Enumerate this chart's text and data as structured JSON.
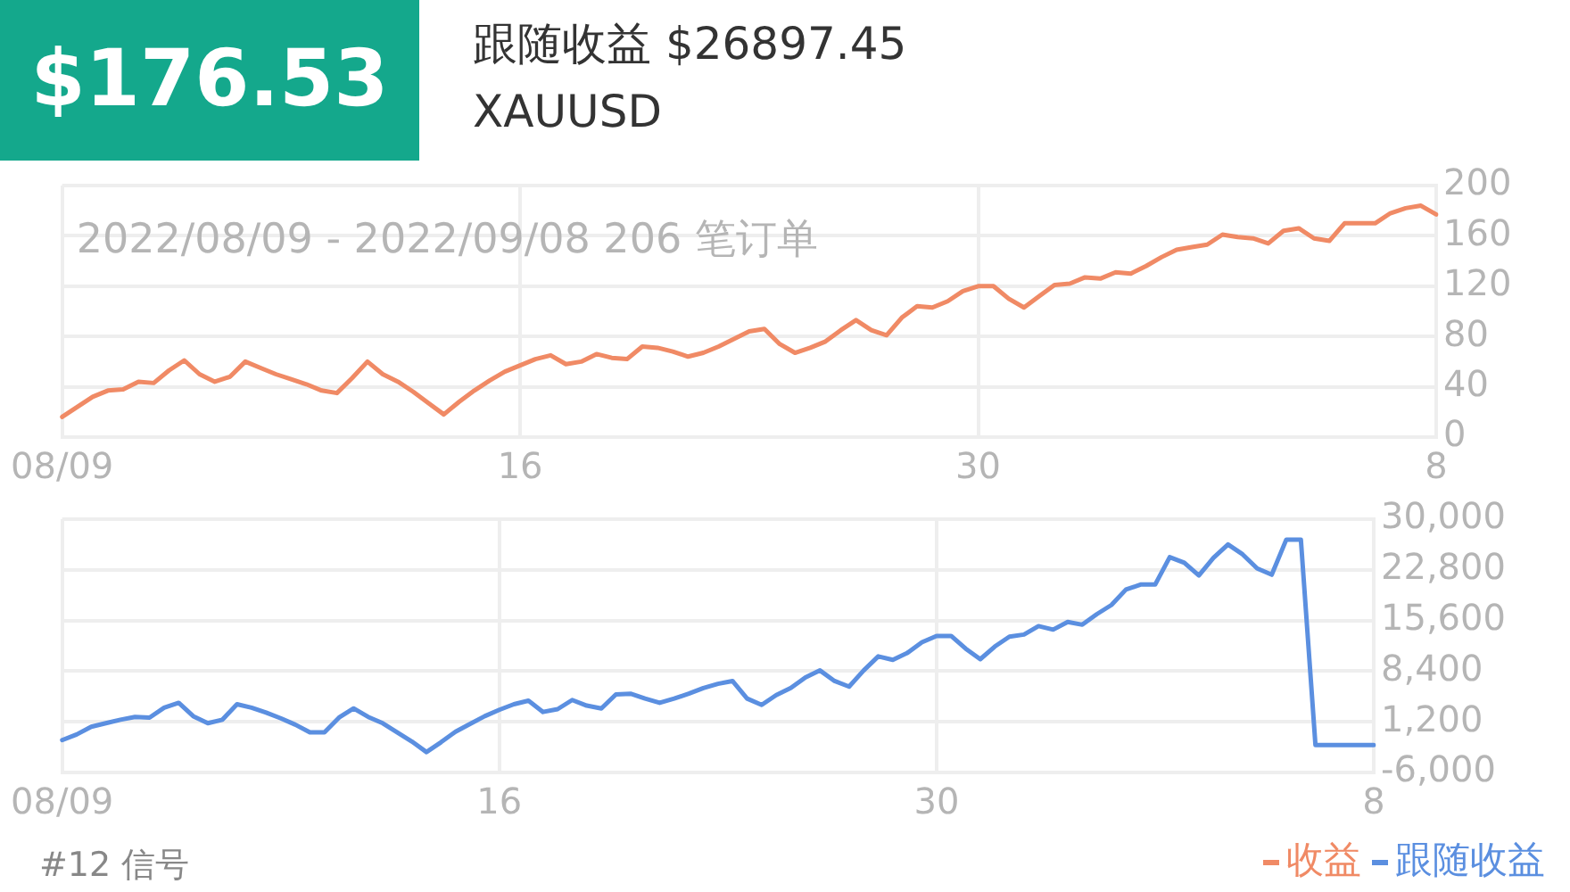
{
  "chart_data": [
    {
      "type": "line",
      "title": "$176.53",
      "subtitle": "跟随收益 $26897.45",
      "annotations": [
        "XAUUSD",
        "2022/08/09 - 2022/09/08 206 笔订单"
      ],
      "categories": [
        "08/09",
        null,
        null,
        null,
        null,
        null,
        null,
        null,
        null,
        null,
        null,
        null,
        null,
        null,
        null,
        null,
        null,
        null,
        null,
        null,
        null,
        null,
        null,
        null,
        null,
        null,
        null,
        null,
        null,
        null,
        "16",
        null,
        null,
        null,
        null,
        null,
        null,
        null,
        null,
        null,
        null,
        null,
        null,
        null,
        null,
        null,
        null,
        null,
        null,
        null,
        null,
        null,
        null,
        null,
        null,
        null,
        null,
        null,
        null,
        null,
        "30",
        null,
        null,
        null,
        null,
        null,
        null,
        null,
        null,
        null,
        null,
        null,
        null,
        null,
        null,
        null,
        null,
        null,
        null,
        null,
        null,
        null,
        null,
        null,
        null,
        null,
        null,
        null,
        null,
        null,
        "8"
      ],
      "series": [
        {
          "name": "收益",
          "color": "#f08a65",
          "values": [
            16,
            24,
            32,
            37,
            38,
            44,
            43,
            53,
            61,
            50,
            44,
            48,
            60,
            55,
            50,
            46,
            42,
            37,
            35,
            47,
            60,
            50,
            44,
            36,
            27,
            18,
            28,
            37,
            45,
            52,
            57,
            62,
            65,
            58,
            60,
            66,
            63,
            62,
            72,
            71,
            68,
            64,
            67,
            72,
            78,
            84,
            86,
            74,
            67,
            71,
            76,
            85,
            93,
            85,
            81,
            95,
            104,
            103,
            108,
            116,
            120,
            120,
            110,
            103,
            112,
            121,
            122,
            127,
            126,
            131,
            130,
            136,
            143,
            149,
            151,
            153,
            161,
            159,
            158,
            154,
            164,
            166,
            158,
            156,
            170,
            170,
            170,
            178,
            182,
            184,
            177
          ]
        }
      ],
      "ylim": [
        0,
        200
      ],
      "yticks": [
        0,
        40,
        80,
        120,
        160,
        200
      ],
      "grid": true,
      "marker": "none",
      "line_style": "solid"
    },
    {
      "type": "line",
      "annotations": [
        "#12 信号"
      ],
      "categories": [
        "08/09",
        null,
        null,
        null,
        null,
        null,
        null,
        null,
        null,
        null,
        null,
        null,
        null,
        null,
        null,
        null,
        null,
        null,
        null,
        null,
        null,
        null,
        null,
        null,
        null,
        null,
        null,
        null,
        null,
        null,
        "16",
        null,
        null,
        null,
        null,
        null,
        null,
        null,
        null,
        null,
        null,
        null,
        null,
        null,
        null,
        null,
        null,
        null,
        null,
        null,
        null,
        null,
        null,
        null,
        null,
        null,
        null,
        null,
        null,
        null,
        "30",
        null,
        null,
        null,
        null,
        null,
        null,
        null,
        null,
        null,
        null,
        null,
        null,
        null,
        null,
        null,
        null,
        null,
        null,
        null,
        null,
        null,
        null,
        null,
        null,
        null,
        null,
        null,
        null,
        null,
        "8"
      ],
      "series": [
        {
          "name": "跟随收益",
          "color": "#5b8fe0",
          "values": [
            -1400,
            -600,
            500,
            1000,
            1500,
            1900,
            1800,
            3200,
            3900,
            2000,
            1000,
            1500,
            3700,
            3200,
            2500,
            1700,
            800,
            -300,
            -300,
            1800,
            3100,
            1900,
            1000,
            -300,
            -1600,
            -3100,
            -1700,
            -200,
            900,
            2000,
            2900,
            3700,
            4200,
            2600,
            3000,
            4300,
            3500,
            3100,
            5100,
            5200,
            4500,
            3900,
            4500,
            5200,
            6000,
            6600,
            7000,
            4500,
            3600,
            5000,
            6000,
            7500,
            8500,
            7000,
            6200,
            8500,
            10500,
            10000,
            11000,
            12500,
            13400,
            13400,
            11600,
            10100,
            11900,
            13300,
            13600,
            14800,
            14300,
            15400,
            15000,
            16500,
            17800,
            20000,
            20700,
            20700,
            24600,
            23800,
            22000,
            24500,
            26400,
            25000,
            23000,
            22100,
            27100,
            27100,
            -2100,
            -2100,
            -2100,
            -2100,
            -2100
          ]
        }
      ],
      "ylim": [
        -6000,
        30000
      ],
      "yticks": [
        {
          "value": -6000,
          "label": "-6,000"
        },
        {
          "value": 1200,
          "label": "1,200"
        },
        {
          "value": 8400,
          "label": "8,400"
        },
        {
          "value": 15600,
          "label": "15,600"
        },
        {
          "value": 22800,
          "label": "22,800"
        },
        {
          "value": 30000,
          "label": "30,000"
        }
      ],
      "grid": true,
      "legend": "bottom right",
      "marker": "none",
      "line_style": "solid"
    }
  ]
}
